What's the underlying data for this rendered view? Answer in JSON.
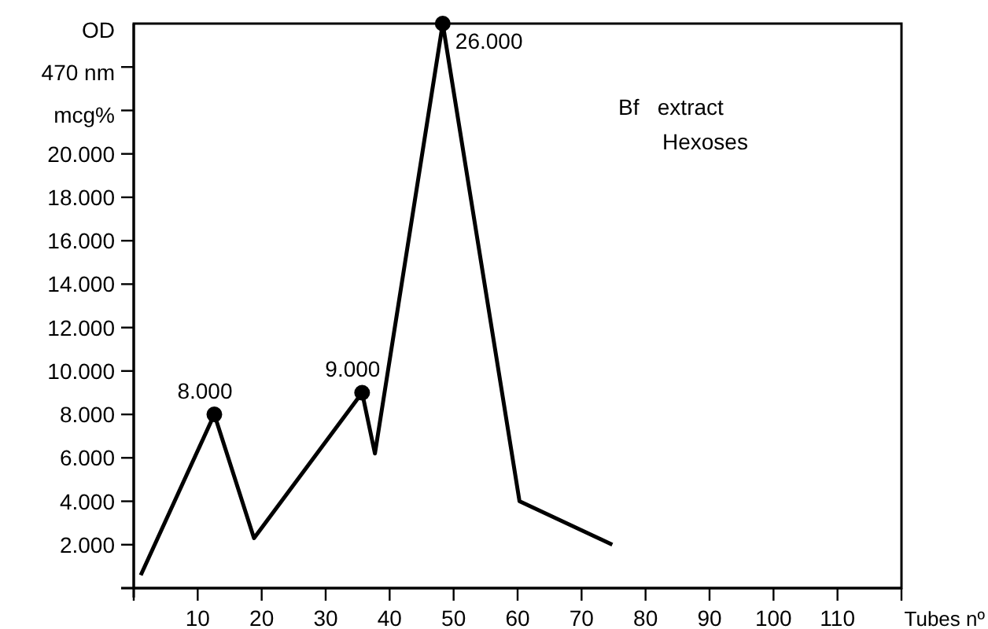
{
  "chart_data": {
    "type": "line",
    "ylabel": "OD\n470 nm\nmcg%",
    "xlabel": "Tubes nº",
    "xlim": [
      0,
      120
    ],
    "xticks": [
      {
        "value": 0,
        "label": null
      },
      10,
      20,
      30,
      40,
      50,
      60,
      70,
      80,
      90,
      100,
      110,
      {
        "value": 120,
        "label": null
      }
    ],
    "ylim": [
      0,
      26000
    ],
    "yticks": [
      {
        "value": 0,
        "label": null
      },
      {
        "value": 2000,
        "label": "2.000"
      },
      {
        "value": 4000,
        "label": "4.000"
      },
      {
        "value": 6000,
        "label": "6.000"
      },
      {
        "value": 8000,
        "label": "8.000"
      },
      {
        "value": 10000,
        "label": "10.000"
      },
      {
        "value": 12000,
        "label": "12.000"
      },
      {
        "value": 14000,
        "label": "14.000"
      },
      {
        "value": 16000,
        "label": "16.000"
      },
      {
        "value": 18000,
        "label": "18.000"
      },
      {
        "value": 20000,
        "label": "20.000"
      },
      {
        "value": 22000,
        "label": null
      },
      {
        "value": 24000,
        "label": null
      }
    ],
    "grid": false,
    "line_style": "solid",
    "series": [
      {
        "color": "#000000",
        "marker": "none",
        "x": [
          1.1,
          12.6,
          18.8,
          35.7,
          37.7,
          48.3,
          60.3,
          74.8
        ],
        "values": [
          600,
          8000,
          2300,
          9000,
          6200,
          26000,
          4000,
          2000
        ]
      },
      {
        "type": "scatter",
        "color": "#000000",
        "marker": "circle",
        "x": [
          12.6,
          35.7,
          48.3
        ],
        "values": [
          8000,
          9000,
          26000
        ],
        "value_labels": [
          "8.000",
          "9.000",
          "26.000"
        ]
      }
    ],
    "annotations": [
      "Bf   extract",
      "Hexoses"
    ]
  }
}
